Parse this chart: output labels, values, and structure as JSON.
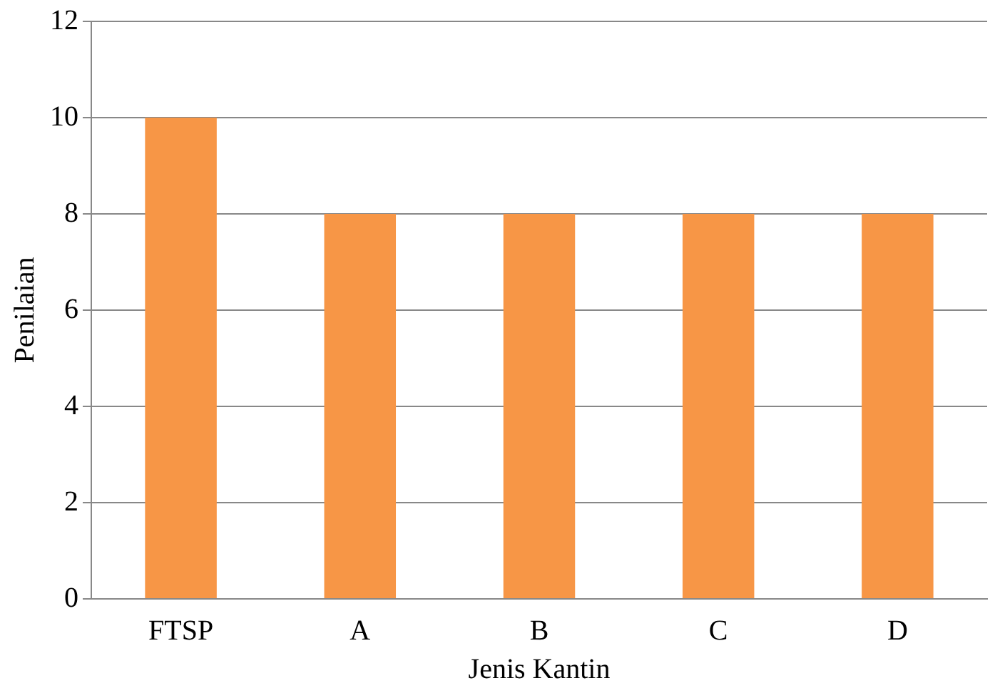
{
  "chart_data": {
    "type": "bar",
    "xlabel": "Jenis Kantin",
    "ylabel": "Penilaian",
    "categories": [
      "FTSP",
      "A",
      "B",
      "C",
      "D"
    ],
    "values": [
      10,
      8,
      8,
      8,
      8
    ],
    "color": "#f79646",
    "ylim": [
      0,
      12
    ],
    "yticks": [
      0,
      2,
      4,
      6,
      8,
      10,
      12
    ],
    "grid": "y",
    "legend": false
  }
}
